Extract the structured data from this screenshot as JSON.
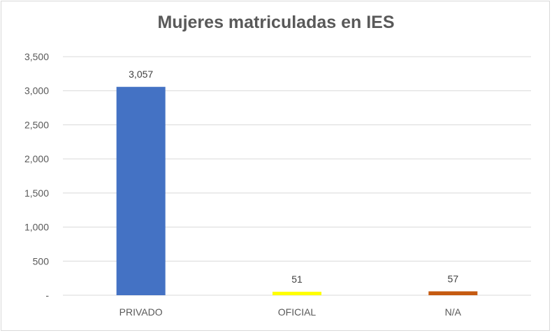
{
  "chart_data": {
    "type": "bar",
    "title": "Mujeres matriculadas en IES",
    "xlabel": "",
    "ylabel": "",
    "categories": [
      "PRIVADO",
      "OFICIAL",
      "N/A"
    ],
    "values": [
      3057,
      51,
      57
    ],
    "data_labels": [
      "3,057",
      "51",
      "57"
    ],
    "bar_colors": [
      "#4472c4",
      "#ffff00",
      "#c55a11"
    ],
    "ylim": [
      0,
      3500
    ],
    "yticks": [
      0,
      500,
      1000,
      1500,
      2000,
      2500,
      3000,
      3500
    ],
    "ytick_labels": [
      "-",
      "500",
      "1,000",
      "1,500",
      "2,000",
      "2,500",
      "3,000",
      "3,500"
    ],
    "grid": true,
    "legend": "none",
    "colors": {
      "grid": "#d9d9d9",
      "text": "#595959",
      "title": "#595959"
    }
  }
}
